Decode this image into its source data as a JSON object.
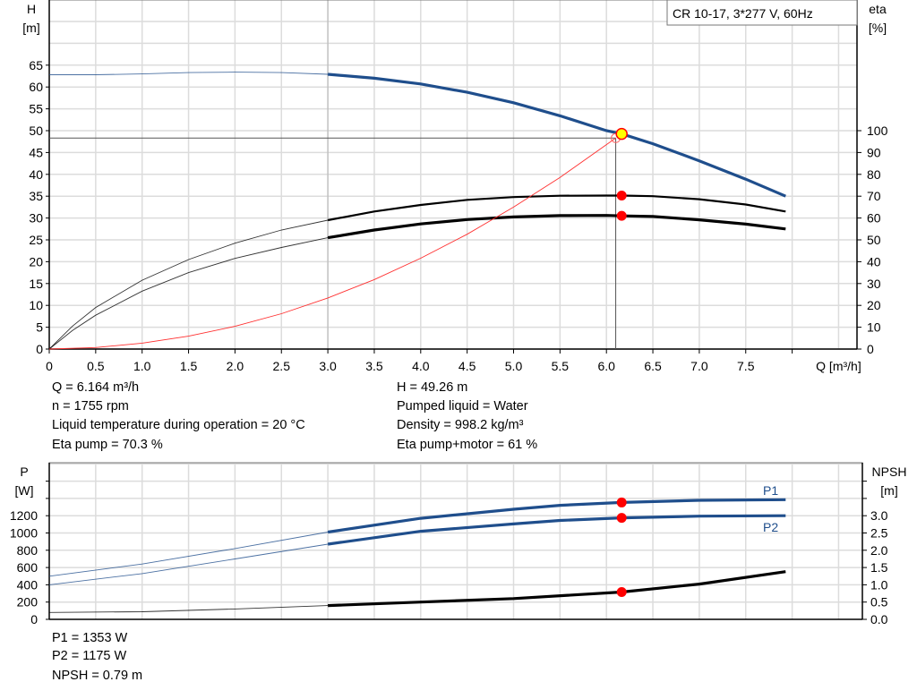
{
  "chart_data": [
    {
      "type": "line",
      "title": "CR 10-17, 3*277 V, 60Hz",
      "xlabel": "Q [m³/h]",
      "ylabel_left": [
        "H",
        "[m]"
      ],
      "ylabel_right": [
        "eta",
        "[%]"
      ],
      "xlim": [
        0,
        8.7
      ],
      "ylim_left": [
        0,
        80
      ],
      "ylim_right": [
        0,
        160
      ],
      "x_ticks": [
        "0",
        "0.5",
        "1.0",
        "1.5",
        "2.0",
        "2.5",
        "3.0",
        "3.5",
        "4.0",
        "4.5",
        "5.0",
        "5.5",
        "6.0",
        "6.5",
        "7.0",
        "7.5"
      ],
      "y_ticks_left": [
        "0",
        "5",
        "10",
        "15",
        "20",
        "25",
        "30",
        "35",
        "40",
        "45",
        "50",
        "55",
        "60",
        "65"
      ],
      "y_ticks_right": [
        "0",
        "10",
        "20",
        "30",
        "40",
        "50",
        "60",
        "70",
        "80",
        "90",
        "100"
      ],
      "grid": true,
      "series": [
        {
          "key": "H",
          "axis": "left",
          "color": "#1f4e8c",
          "bold_from": 3.0,
          "x": [
            0,
            0.5,
            1.0,
            1.5,
            2.0,
            2.5,
            3.0,
            3.5,
            4.0,
            4.5,
            5.0,
            5.5,
            6.0,
            6.164,
            6.5,
            7.0,
            7.5,
            7.93
          ],
          "y": [
            62.8,
            62.8,
            63.0,
            63.3,
            63.4,
            63.3,
            62.9,
            62.0,
            60.7,
            58.8,
            56.4,
            53.4,
            50.0,
            49.26,
            47.0,
            43.1,
            38.9,
            35.0
          ]
        },
        {
          "key": "eta_pump",
          "axis": "right",
          "color": "#000000",
          "bold_from": 3.0,
          "x": [
            0,
            0.25,
            0.5,
            1.0,
            1.5,
            2.0,
            2.5,
            3.0,
            3.5,
            4.0,
            4.5,
            5.0,
            5.5,
            6.0,
            6.164,
            6.5,
            7.0,
            7.5,
            7.93
          ],
          "y": [
            0,
            10.5,
            19,
            31.5,
            41,
            48.5,
            54.5,
            59,
            63,
            66,
            68.3,
            69.6,
            70.2,
            70.3,
            70.3,
            70.0,
            68.6,
            66.2,
            63.0
          ]
        },
        {
          "key": "eta_pump_motor",
          "axis": "right",
          "color": "#000000",
          "bold_from": 3.0,
          "x": [
            0,
            0.25,
            0.5,
            1.0,
            1.5,
            2.0,
            2.5,
            3.0,
            3.5,
            4.0,
            4.5,
            5.0,
            5.5,
            6.0,
            6.164,
            6.5,
            7.0,
            7.5,
            7.93
          ],
          "y": [
            0,
            8.5,
            15.5,
            26.5,
            35,
            41.5,
            46.5,
            51,
            54.5,
            57.3,
            59.3,
            60.5,
            61.1,
            61.2,
            61.0,
            60.7,
            59.2,
            57.2,
            55.0
          ]
        },
        {
          "key": "system_curve",
          "axis": "left",
          "color": "#ff3030",
          "bold_from": null,
          "x": [
            0,
            0.5,
            1.0,
            1.5,
            2.0,
            2.5,
            3.0,
            3.5,
            4.0,
            4.5,
            5.0,
            5.5,
            6.1
          ],
          "y": [
            0,
            0.35,
            1.35,
            2.95,
            5.2,
            8.1,
            11.7,
            15.9,
            20.8,
            26.3,
            32.5,
            39.3,
            48.3
          ]
        }
      ],
      "operating_point": {
        "Q": 6.164,
        "H": 49.26,
        "eta_pump": 70.3,
        "eta_pump_motor": 61
      },
      "reference_lines": {
        "Q": 6.1,
        "H": 48.3
      }
    },
    {
      "type": "line",
      "ylabel_left": [
        "P",
        "[W]"
      ],
      "ylabel_right": [
        "NPSH",
        "[m]"
      ],
      "xlim": [
        0,
        8.7
      ],
      "ylim_left": [
        0,
        1800
      ],
      "ylim_right": [
        0,
        4.5
      ],
      "y_ticks_left": [
        "0",
        "200",
        "400",
        "600",
        "800",
        "1000",
        "1200"
      ],
      "y_ticks_right": [
        "0.0",
        "0.5",
        "1.0",
        "1.5",
        "2.0",
        "2.5",
        "3.0"
      ],
      "grid": true,
      "series": [
        {
          "key": "P1",
          "name": "P1",
          "axis": "left",
          "color": "#1f4e8c",
          "bold_from": 3.0,
          "x": [
            0,
            1.0,
            2.0,
            3.0,
            4.0,
            5.0,
            5.5,
            6.164,
            7.0,
            7.93
          ],
          "y": [
            500,
            640,
            820,
            1010,
            1170,
            1275,
            1320,
            1353,
            1378,
            1385
          ]
        },
        {
          "key": "P2",
          "name": "P2",
          "axis": "left",
          "color": "#1f4e8c",
          "bold_from": 3.0,
          "x": [
            0,
            1.0,
            2.0,
            3.0,
            4.0,
            5.0,
            5.5,
            6.164,
            7.0,
            7.93
          ],
          "y": [
            400,
            530,
            700,
            870,
            1020,
            1105,
            1145,
            1175,
            1195,
            1200
          ]
        },
        {
          "key": "NPSH",
          "axis": "right",
          "color": "#000000",
          "bold_from": 3.0,
          "x": [
            0,
            1.0,
            2.0,
            3.0,
            4.0,
            5.0,
            6.164,
            7.0,
            7.93
          ],
          "y": [
            0.2,
            0.22,
            0.3,
            0.4,
            0.5,
            0.6,
            0.79,
            1.02,
            1.38
          ]
        }
      ],
      "operating_point": {
        "Q": 6.164,
        "P1": 1353,
        "P2": 1175,
        "NPSH": 0.79
      }
    }
  ],
  "info_top": {
    "q": "Q = 6.164 m³/h",
    "n": "n = 1755 rpm",
    "temp": "Liquid temperature during operation = 20 °C",
    "eta_pump": "Eta pump = 70.3 %",
    "h": "H = 49.26 m",
    "liquid": "Pumped liquid = Water",
    "density": "Density = 998.2 kg/m³",
    "eta_pm": "Eta pump+motor = 61 %"
  },
  "info_bottom": {
    "p1": "P1 = 1353 W",
    "p2": "P2 = 1175 W",
    "npsh": "NPSH = 0.79 m"
  }
}
